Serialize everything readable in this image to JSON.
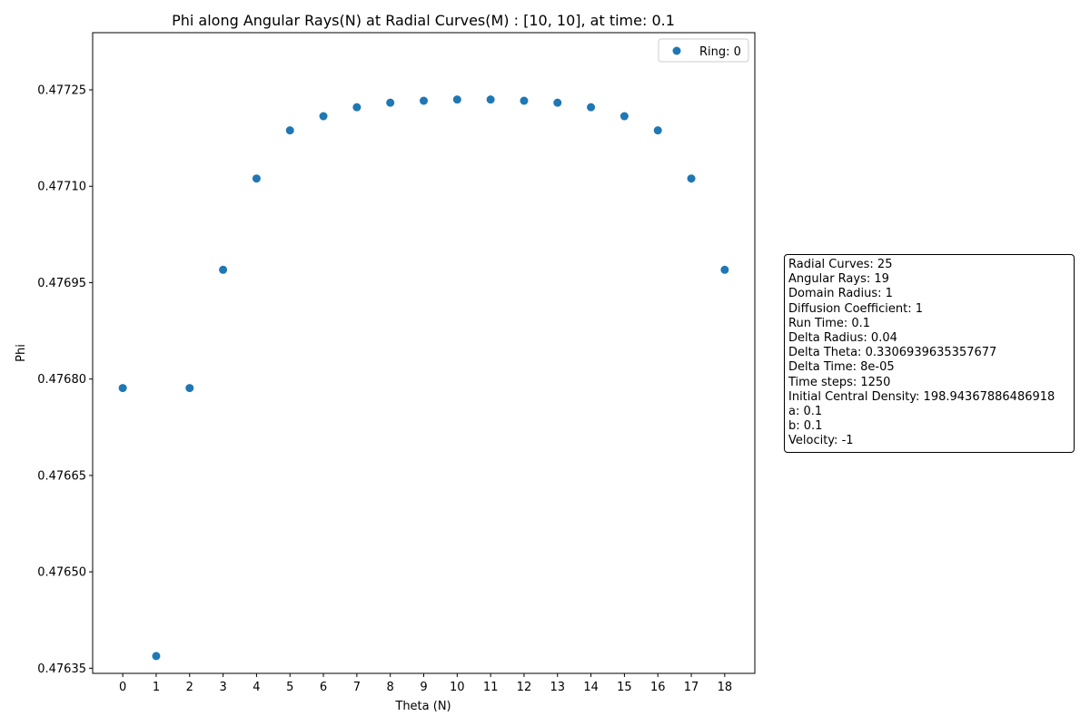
{
  "chart_data": {
    "type": "scatter",
    "title": "Phi along Angular Rays(N) at Radial Curves(M) : [10, 10], at time: 0.1",
    "xlabel": "Theta (N)",
    "ylabel": "Phi",
    "xlim": [
      -0.9,
      18.9
    ],
    "ylim": [
      0.476342,
      0.477339
    ],
    "x_ticks": [
      0,
      1,
      2,
      3,
      4,
      5,
      6,
      7,
      8,
      9,
      10,
      11,
      12,
      13,
      14,
      15,
      16,
      17,
      18
    ],
    "y_ticks": [
      0.47635,
      0.4765,
      0.47665,
      0.4768,
      0.47695,
      0.4771,
      0.47725
    ],
    "y_tick_labels": [
      "0.47635",
      "0.47650",
      "0.47665",
      "0.47680",
      "0.47695",
      "0.47710",
      "0.47725"
    ],
    "grid": false,
    "legend_position": "top-right",
    "series": [
      {
        "name": "Ring: 0",
        "color": "#1f77b4",
        "x": [
          0,
          1,
          2,
          3,
          4,
          5,
          6,
          7,
          8,
          9,
          10,
          11,
          12,
          13,
          14,
          15,
          16,
          17,
          18
        ],
        "y": [
          0.476786,
          0.476369,
          0.476786,
          0.47697,
          0.477112,
          0.477187,
          0.477209,
          0.477223,
          0.47723,
          0.477233,
          0.477235,
          0.477235,
          0.477233,
          0.47723,
          0.477223,
          0.477209,
          0.477187,
          0.477112,
          0.47697
        ]
      }
    ]
  },
  "info_box": {
    "lines": [
      "Radial Curves: 25",
      "Angular Rays: 19",
      "Domain Radius: 1",
      "Diffusion Coefficient: 1",
      "Run Time: 0.1",
      "Delta Radius: 0.04",
      "Delta Theta: 0.3306939635357677",
      "Delta Time: 8e-05",
      "Time steps: 1250",
      "Initial Central Density: 198.94367886486918",
      "a: 0.1",
      "b: 0.1",
      "Velocity: -1"
    ]
  }
}
